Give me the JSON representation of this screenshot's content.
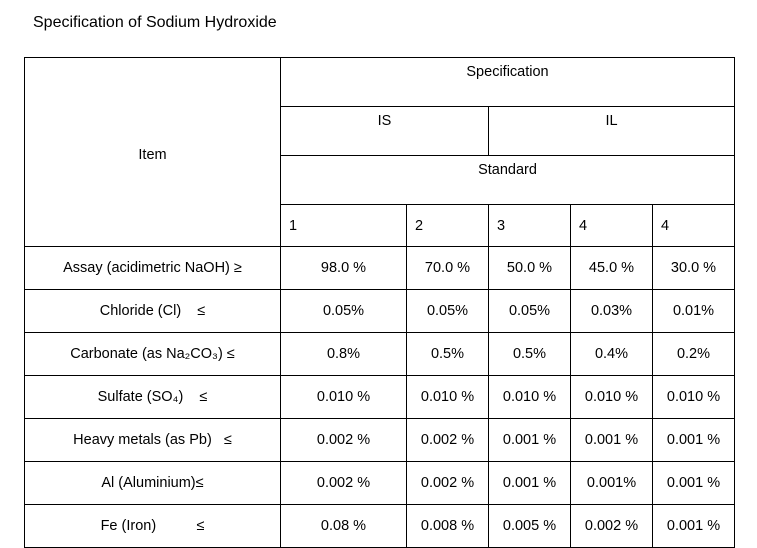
{
  "title": "Specification of Sodium Hydroxide",
  "table": {
    "header": {
      "item": "Item",
      "specification": "Specification",
      "groups": [
        "IS",
        "IL"
      ],
      "standard": "Standard",
      "numbers": [
        "1",
        "2",
        "3",
        "4",
        "4"
      ]
    },
    "rows": [
      [
        "Assay (acidimetric NaOH) ≥",
        "98.0 %",
        "70.0 %",
        "50.0 %",
        "45.0 %",
        "30.0 %"
      ],
      [
        "Chloride (Cl)    ≤",
        "0.05%",
        "0.05%",
        "0.05%",
        "0.03%",
        "0.01%"
      ],
      [
        "Carbonate (as Na₂CO₃) ≤",
        "0.8%",
        "0.5%",
        "0.5%",
        "0.4%",
        "0.2%"
      ],
      [
        "Sulfate (SO₄)    ≤",
        "0.010 %",
        "0.010 %",
        "0.010 %",
        "0.010 %",
        "0.010 %"
      ],
      [
        "Heavy metals (as Pb)   ≤",
        "0.002 %",
        "0.002 %",
        "0.001 %",
        "0.001 %",
        "0.001 %"
      ],
      [
        "Al (Aluminium)≤",
        "0.002 %",
        "0.002 %",
        "0.001 %",
        "0.001%",
        "0.001 %"
      ],
      [
        "Fe (Iron)          ≤",
        "0.08 %",
        "0.008 %",
        "0.005 %",
        "0.002 %",
        "0.001 %"
      ]
    ]
  }
}
